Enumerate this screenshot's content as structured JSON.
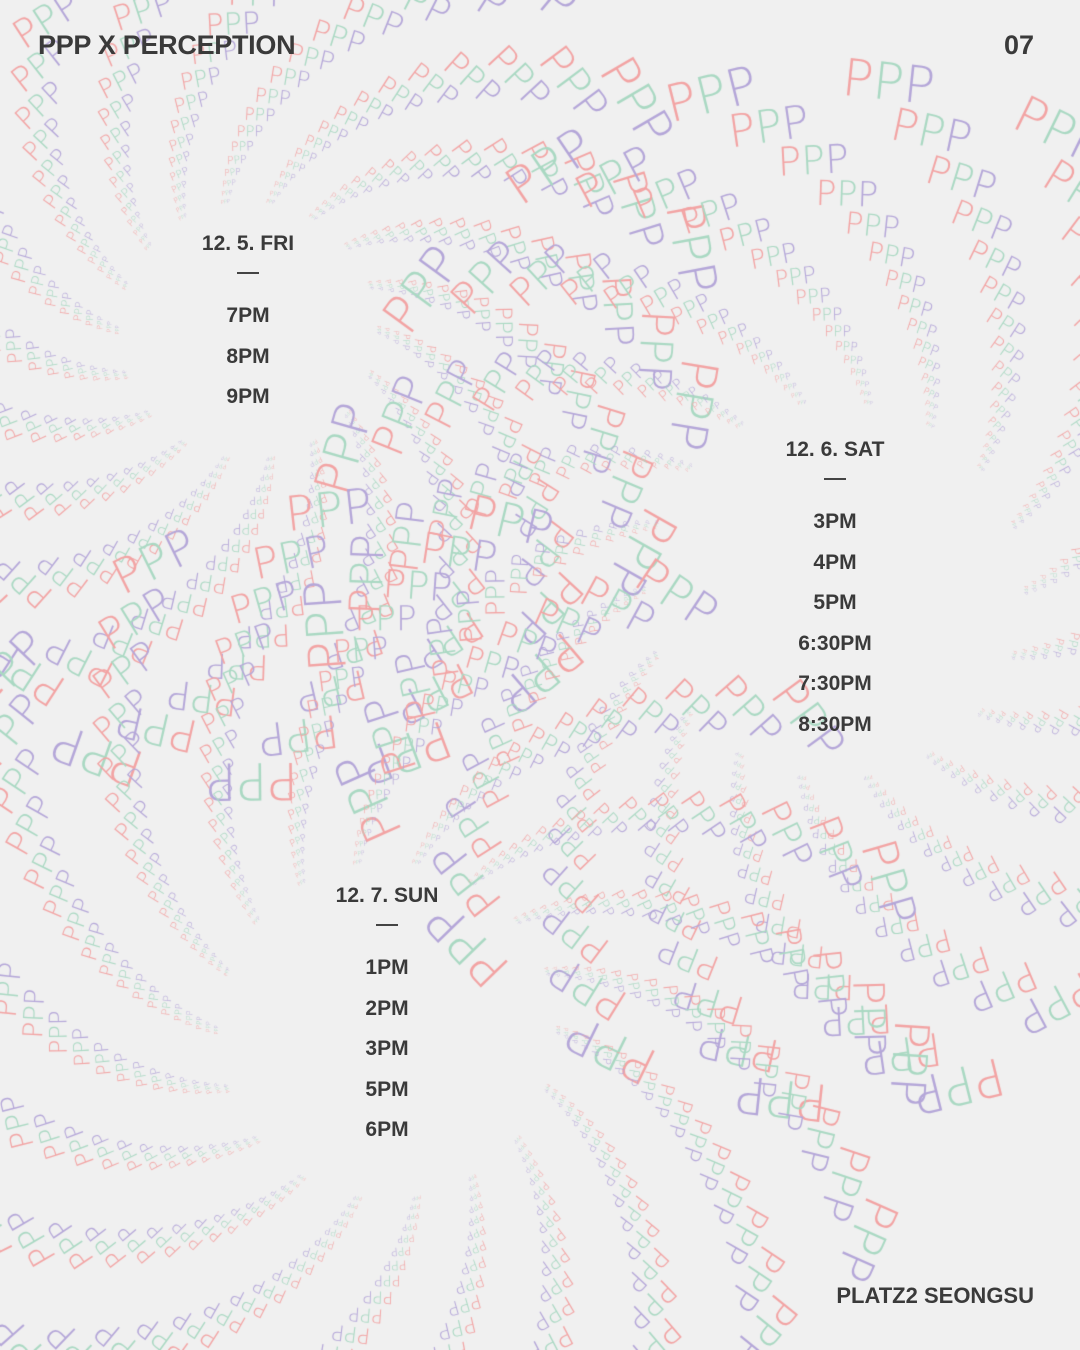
{
  "header": {
    "title": "PPP X PERCEPTION",
    "page_number": "07"
  },
  "footer": {
    "venue": "PLATZ2 SEONGSU"
  },
  "pattern": {
    "glyph": "PPP",
    "colors": [
      "#f2a3a3",
      "#a9d8c2",
      "#b4a6d8"
    ]
  },
  "schedule": [
    {
      "date": "12. 5. FRI",
      "dash": "—",
      "times": [
        "7PM",
        "8PM",
        "9PM"
      ]
    },
    {
      "date": "12. 6. SAT",
      "dash": "—",
      "times": [
        "3PM",
        "4PM",
        "5PM",
        "6:30PM",
        "7:30PM",
        "8:30PM"
      ]
    },
    {
      "date": "12. 7. SUN",
      "dash": "—",
      "times": [
        "1PM",
        "2PM",
        "3PM",
        "5PM",
        "6PM"
      ]
    }
  ]
}
